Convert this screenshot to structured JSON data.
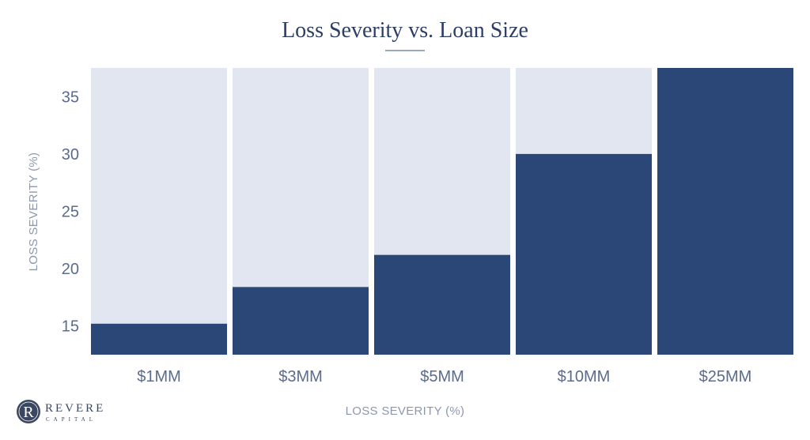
{
  "chart_data": {
    "type": "bar",
    "title": "Loss Severity vs. Loan Size",
    "xlabel": "LOSS SEVERITY (%)",
    "ylabel": "LOSS SEVERITY (%)",
    "categories": [
      "$1MM",
      "$3MM",
      "$5MM",
      "$10MM",
      "$25MM"
    ],
    "values": [
      15.2,
      18.4,
      21.2,
      30.0,
      37.5
    ],
    "ylim": [
      12.5,
      37.5
    ],
    "yticks": [
      15,
      20,
      25,
      30,
      35
    ],
    "grid": false,
    "background_bars": true
  },
  "colors": {
    "bar": "#2b4778",
    "bar_background": "#e1e6f0",
    "title": "#2c3e66",
    "divider": "#9aa8c0"
  },
  "logo": {
    "icon": "revere-capital-seal-icon",
    "letter": "R",
    "name": "REVERE",
    "subtitle": "CAPITAL"
  }
}
